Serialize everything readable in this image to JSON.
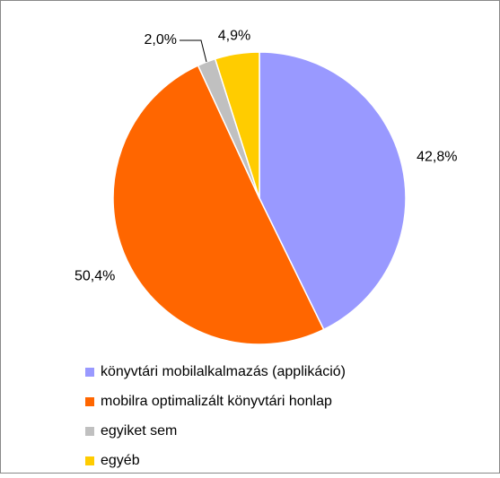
{
  "chart_data": {
    "type": "pie",
    "categories": [
      "könyvtári mobilalkalmazás (applikáció)",
      "mobilra optimalizált könyvtári honlap",
      "egyiket sem",
      "egyéb"
    ],
    "values": [
      42.8,
      50.4,
      2.0,
      4.9
    ],
    "value_labels": [
      "42,8%",
      "50,4%",
      "2,0%",
      "4,9%"
    ],
    "colors": [
      "#9999ff",
      "#ff6600",
      "#c0c0c0",
      "#ffcc00"
    ],
    "legend": "bottom"
  }
}
